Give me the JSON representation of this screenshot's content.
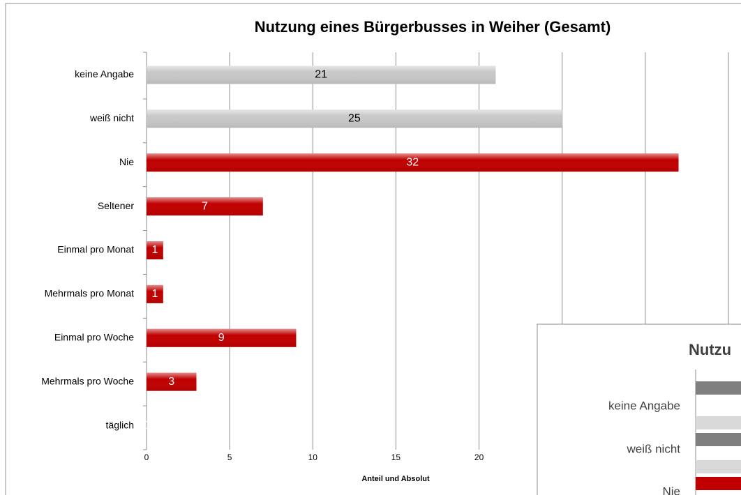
{
  "chart_data": [
    {
      "type": "barh",
      "title": "Nutzung eines Bürgerbusses in Weiher (Gesamt)",
      "x_label": "Anteil und Absolut",
      "categories": [
        "keine Angabe",
        "weiß nicht",
        "Nie",
        "Seltener",
        "Einmal pro Monat",
        "Mehrmals pro Monat",
        "Einmal pro Woche",
        "Mehrmals pro Woche",
        "täglich"
      ],
      "values": [
        21,
        25,
        32,
        7,
        1,
        1,
        9,
        3,
        0
      ],
      "colors": [
        "#c8c8c8",
        "#c8c8c8",
        "#c00000",
        "#c00000",
        "#c00000",
        "#c00000",
        "#c00000",
        "#c00000",
        "#c00000"
      ],
      "label_colors": [
        "#000000",
        "#000000",
        "#ffffff",
        "#ffffff",
        "#ffffff",
        "#ffffff",
        "#ffffff",
        "#ffffff",
        "#ffffff"
      ],
      "xlim": [
        0,
        35
      ],
      "xticks": [
        0,
        5,
        10,
        15,
        20,
        25,
        30,
        35
      ],
      "grid": true
    },
    {
      "type": "clipped",
      "title": "Nutzu",
      "categories": [
        "keine Angabe",
        "weiß nicht",
        "Nie"
      ]
    }
  ]
}
